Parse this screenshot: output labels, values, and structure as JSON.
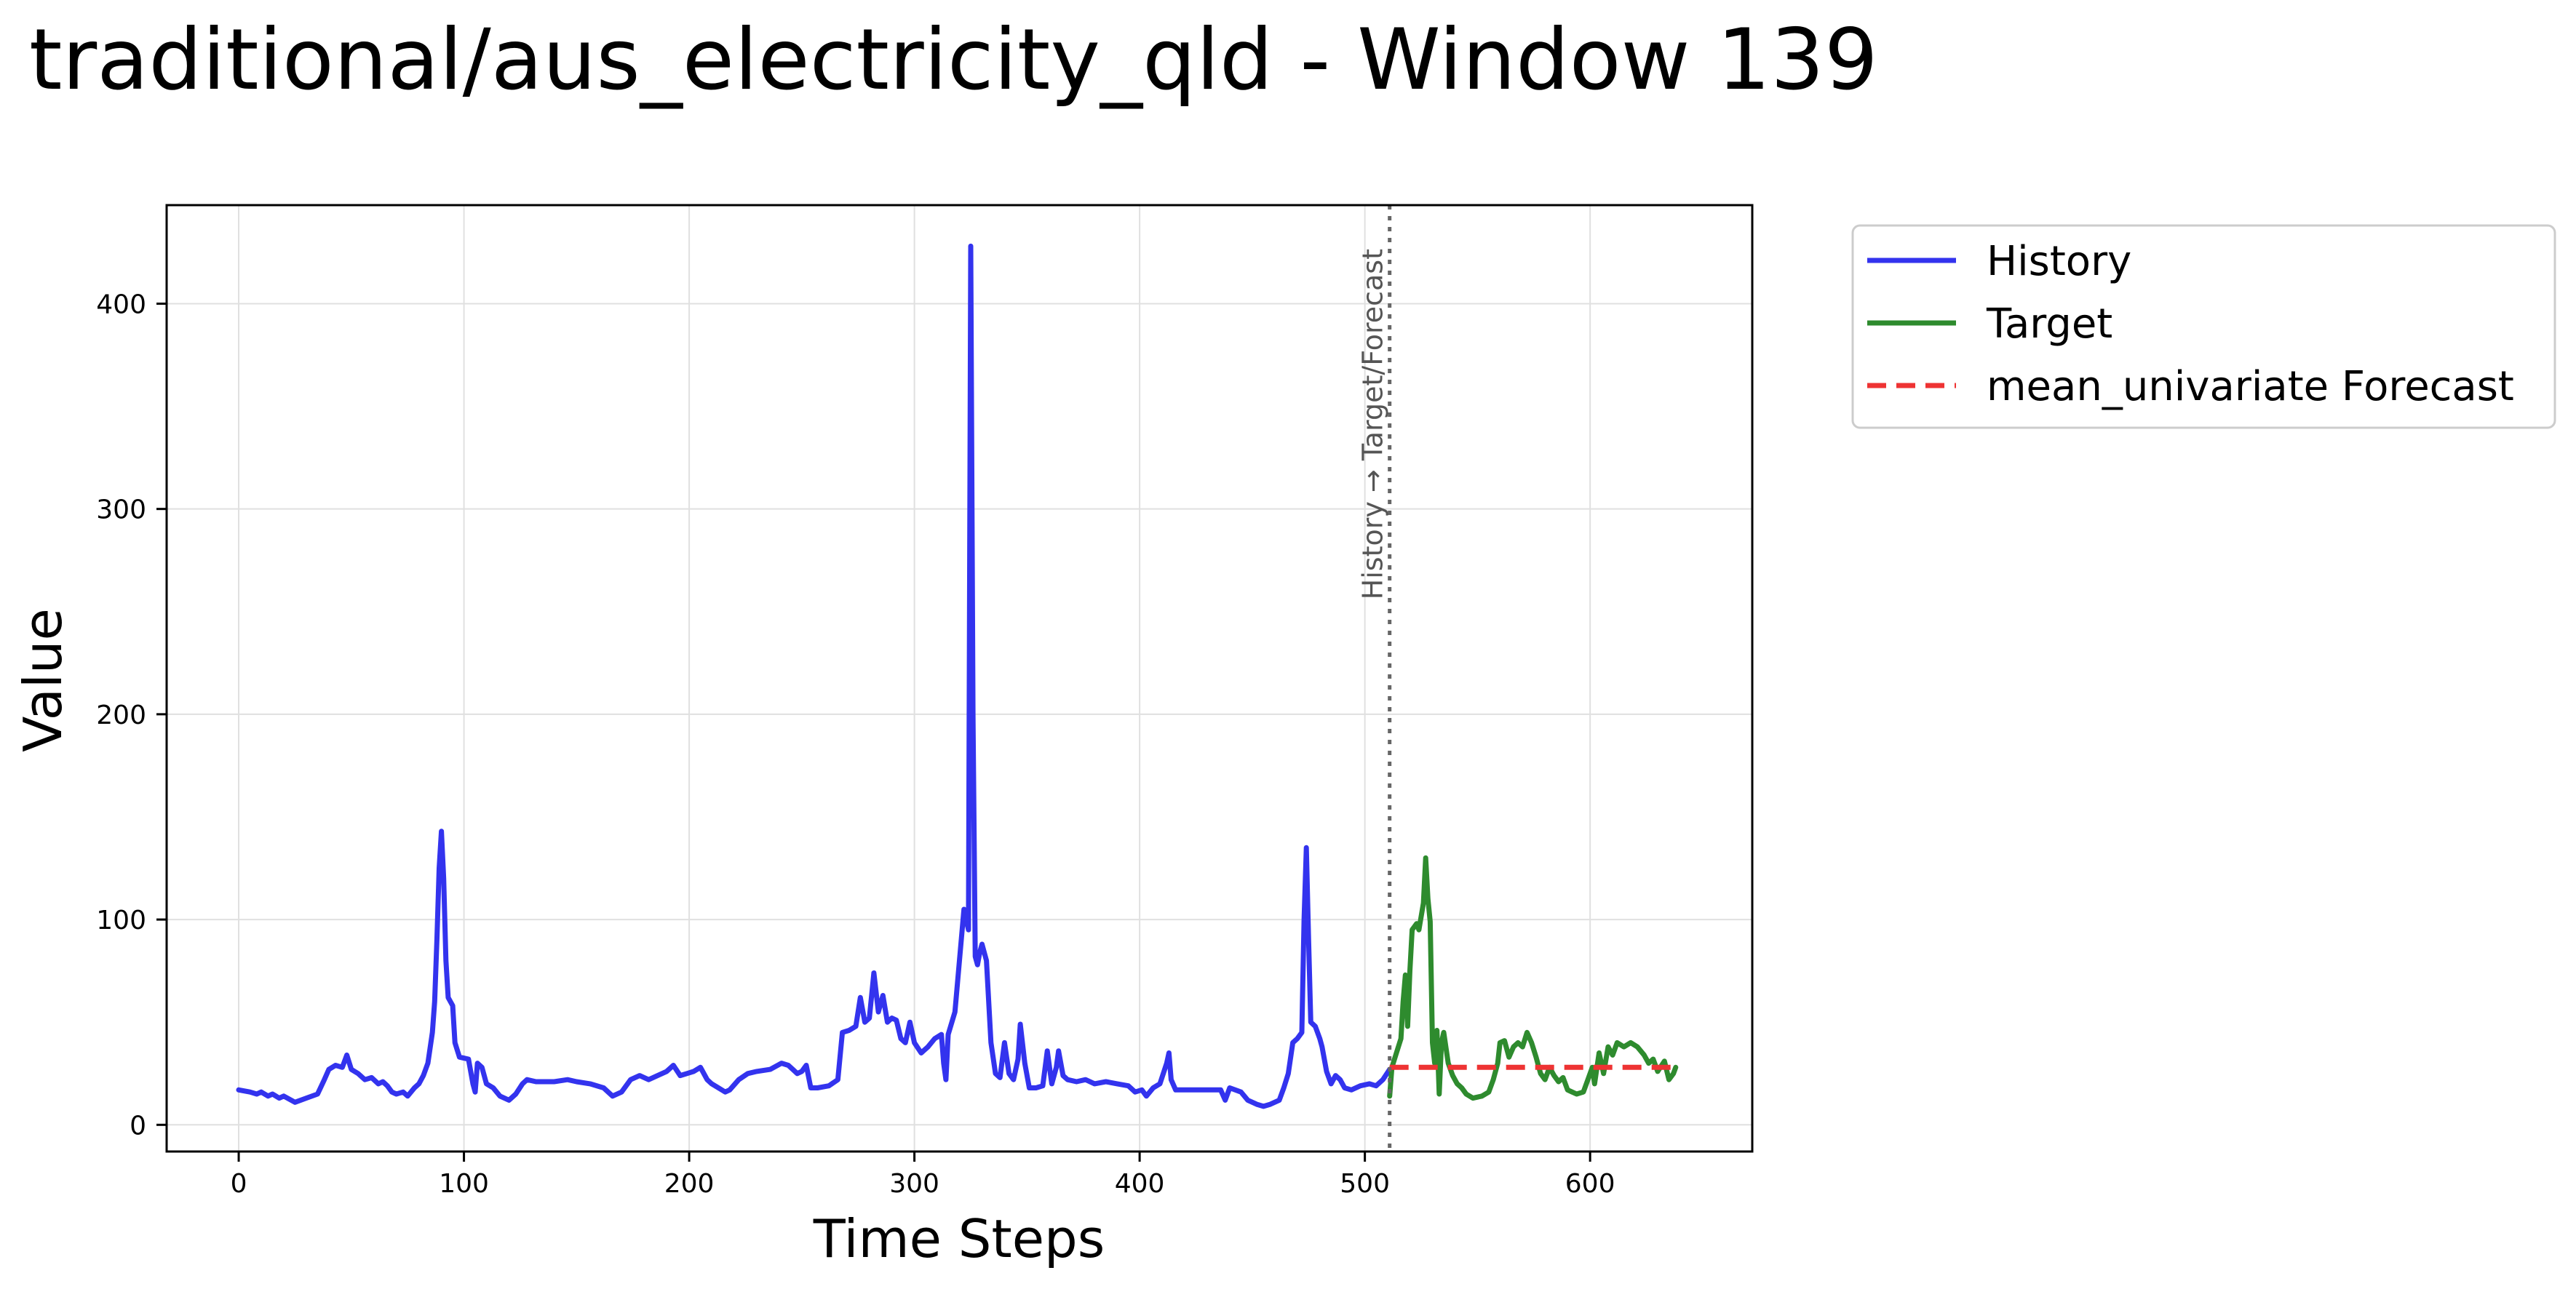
{
  "figure": {
    "title": "traditional/aus_electricity_qld - Window 139"
  },
  "chart_data": {
    "type": "line",
    "title": "traditional/aus_electricity_qld - Window 139",
    "xlabel": "Time Steps",
    "ylabel": "Value",
    "xlim": [
      -32,
      672
    ],
    "ylim": [
      -13,
      448
    ],
    "xticks": [
      0,
      100,
      200,
      300,
      400,
      500,
      600
    ],
    "yticks": [
      0,
      100,
      200,
      300,
      400
    ],
    "grid": true,
    "legend_position": "outside-top-right",
    "split_x": 511,
    "split_annotation": "History → Target/Forecast",
    "series": [
      {
        "name": "History",
        "color": "#3333ee",
        "style": "solid",
        "points": [
          [
            0,
            17
          ],
          [
            5,
            16
          ],
          [
            8,
            15
          ],
          [
            10,
            16
          ],
          [
            13,
            14
          ],
          [
            15,
            15
          ],
          [
            18,
            13
          ],
          [
            20,
            14
          ],
          [
            25,
            11
          ],
          [
            30,
            13
          ],
          [
            35,
            15
          ],
          [
            38,
            22
          ],
          [
            40,
            27
          ],
          [
            43,
            29
          ],
          [
            46,
            28
          ],
          [
            48,
            34
          ],
          [
            50,
            27
          ],
          [
            53,
            25
          ],
          [
            56,
            22
          ],
          [
            59,
            23
          ],
          [
            62,
            20
          ],
          [
            64,
            21
          ],
          [
            66,
            19
          ],
          [
            68,
            16
          ],
          [
            70,
            15
          ],
          [
            73,
            16
          ],
          [
            75,
            14
          ],
          [
            78,
            18
          ],
          [
            80,
            20
          ],
          [
            82,
            24
          ],
          [
            84,
            30
          ],
          [
            86,
            45
          ],
          [
            87,
            60
          ],
          [
            88,
            90
          ],
          [
            89,
            125
          ],
          [
            90,
            143
          ],
          [
            91,
            120
          ],
          [
            92,
            80
          ],
          [
            93,
            62
          ],
          [
            95,
            58
          ],
          [
            96,
            40
          ],
          [
            98,
            33
          ],
          [
            102,
            32
          ],
          [
            104,
            20
          ],
          [
            105,
            16
          ],
          [
            106,
            30
          ],
          [
            108,
            28
          ],
          [
            110,
            20
          ],
          [
            113,
            18
          ],
          [
            116,
            14
          ],
          [
            120,
            12
          ],
          [
            123,
            15
          ],
          [
            126,
            20
          ],
          [
            128,
            22
          ],
          [
            132,
            21
          ],
          [
            140,
            21
          ],
          [
            146,
            22
          ],
          [
            150,
            21
          ],
          [
            156,
            20
          ],
          [
            162,
            18
          ],
          [
            166,
            14
          ],
          [
            170,
            16
          ],
          [
            174,
            22
          ],
          [
            178,
            24
          ],
          [
            182,
            22
          ],
          [
            186,
            24
          ],
          [
            190,
            26
          ],
          [
            193,
            29
          ],
          [
            196,
            24
          ],
          [
            199,
            25
          ],
          [
            202,
            26
          ],
          [
            205,
            28
          ],
          [
            208,
            22
          ],
          [
            210,
            20
          ],
          [
            213,
            18
          ],
          [
            216,
            16
          ],
          [
            218,
            17
          ],
          [
            222,
            22
          ],
          [
            226,
            25
          ],
          [
            230,
            26
          ],
          [
            236,
            27
          ],
          [
            241,
            30
          ],
          [
            244,
            29
          ],
          [
            246,
            27
          ],
          [
            248,
            25
          ],
          [
            250,
            26
          ],
          [
            252,
            29
          ],
          [
            254,
            18
          ],
          [
            257,
            18
          ],
          [
            262,
            19
          ],
          [
            266,
            22
          ],
          [
            268,
            45
          ],
          [
            271,
            46
          ],
          [
            274,
            48
          ],
          [
            276,
            62
          ],
          [
            278,
            50
          ],
          [
            280,
            52
          ],
          [
            282,
            74
          ],
          [
            284,
            55
          ],
          [
            286,
            63
          ],
          [
            288,
            50
          ],
          [
            290,
            52
          ],
          [
            292,
            51
          ],
          [
            294,
            42
          ],
          [
            296,
            40
          ],
          [
            298,
            50
          ],
          [
            300,
            40
          ],
          [
            303,
            35
          ],
          [
            306,
            38
          ],
          [
            309,
            42
          ],
          [
            312,
            44
          ],
          [
            313,
            30
          ],
          [
            314,
            22
          ],
          [
            315,
            44
          ],
          [
            318,
            55
          ],
          [
            320,
            80
          ],
          [
            322,
            105
          ],
          [
            324,
            95
          ],
          [
            325,
            428
          ],
          [
            326,
            200
          ],
          [
            327,
            82
          ],
          [
            328,
            78
          ],
          [
            329,
            84
          ],
          [
            330,
            88
          ],
          [
            332,
            80
          ],
          [
            334,
            40
          ],
          [
            336,
            25
          ],
          [
            338,
            23
          ],
          [
            340,
            40
          ],
          [
            342,
            25
          ],
          [
            344,
            22
          ],
          [
            346,
            32
          ],
          [
            347,
            49
          ],
          [
            349,
            30
          ],
          [
            351,
            18
          ],
          [
            354,
            18
          ],
          [
            357,
            19
          ],
          [
            359,
            36
          ],
          [
            361,
            20
          ],
          [
            363,
            28
          ],
          [
            364,
            36
          ],
          [
            366,
            24
          ],
          [
            368,
            22
          ],
          [
            372,
            21
          ],
          [
            376,
            22
          ],
          [
            380,
            20
          ],
          [
            385,
            21
          ],
          [
            390,
            20
          ],
          [
            395,
            19
          ],
          [
            398,
            16
          ],
          [
            401,
            17
          ],
          [
            403,
            14
          ],
          [
            406,
            18
          ],
          [
            409,
            20
          ],
          [
            412,
            30
          ],
          [
            413,
            35
          ],
          [
            414,
            22
          ],
          [
            416,
            17
          ],
          [
            420,
            17
          ],
          [
            426,
            17
          ],
          [
            432,
            17
          ],
          [
            436,
            17
          ],
          [
            438,
            12
          ],
          [
            440,
            18
          ],
          [
            445,
            16
          ],
          [
            448,
            12
          ],
          [
            452,
            10
          ],
          [
            455,
            9
          ],
          [
            458,
            10
          ],
          [
            462,
            12
          ],
          [
            464,
            18
          ],
          [
            466,
            25
          ],
          [
            468,
            40
          ],
          [
            470,
            42
          ],
          [
            472,
            45
          ],
          [
            473,
            100
          ],
          [
            474,
            135
          ],
          [
            475,
            90
          ],
          [
            476,
            50
          ],
          [
            478,
            48
          ],
          [
            480,
            42
          ],
          [
            481,
            38
          ],
          [
            483,
            26
          ],
          [
            485,
            20
          ],
          [
            487,
            24
          ],
          [
            489,
            22
          ],
          [
            491,
            18
          ],
          [
            494,
            17
          ],
          [
            498,
            19
          ],
          [
            502,
            20
          ],
          [
            505,
            19
          ],
          [
            508,
            22
          ],
          [
            511,
            27
          ]
        ]
      },
      {
        "name": "Target",
        "color": "#2e8b2e",
        "style": "solid",
        "points": [
          [
            511,
            14
          ],
          [
            512,
            28
          ],
          [
            514,
            35
          ],
          [
            516,
            42
          ],
          [
            517,
            60
          ],
          [
            518,
            73
          ],
          [
            519,
            48
          ],
          [
            520,
            75
          ],
          [
            521,
            95
          ],
          [
            523,
            98
          ],
          [
            524,
            95
          ],
          [
            526,
            108
          ],
          [
            527,
            130
          ],
          [
            528,
            110
          ],
          [
            529,
            99
          ],
          [
            530,
            40
          ],
          [
            531,
            30
          ],
          [
            532,
            46
          ],
          [
            533,
            15
          ],
          [
            534,
            40
          ],
          [
            535,
            45
          ],
          [
            537,
            30
          ],
          [
            539,
            24
          ],
          [
            541,
            20
          ],
          [
            543,
            18
          ],
          [
            545,
            15
          ],
          [
            548,
            13
          ],
          [
            552,
            14
          ],
          [
            555,
            16
          ],
          [
            557,
            22
          ],
          [
            559,
            30
          ],
          [
            560,
            40
          ],
          [
            562,
            41
          ],
          [
            564,
            33
          ],
          [
            566,
            38
          ],
          [
            568,
            40
          ],
          [
            570,
            38
          ],
          [
            572,
            45
          ],
          [
            574,
            40
          ],
          [
            576,
            33
          ],
          [
            578,
            25
          ],
          [
            580,
            22
          ],
          [
            582,
            28
          ],
          [
            584,
            24
          ],
          [
            586,
            21
          ],
          [
            588,
            23
          ],
          [
            590,
            17
          ],
          [
            594,
            15
          ],
          [
            597,
            16
          ],
          [
            599,
            22
          ],
          [
            601,
            28
          ],
          [
            602,
            20
          ],
          [
            604,
            35
          ],
          [
            606,
            25
          ],
          [
            608,
            38
          ],
          [
            610,
            34
          ],
          [
            612,
            40
          ],
          [
            615,
            38
          ],
          [
            618,
            40
          ],
          [
            621,
            38
          ],
          [
            624,
            34
          ],
          [
            626,
            30
          ],
          [
            628,
            32
          ],
          [
            630,
            26
          ],
          [
            633,
            31
          ],
          [
            635,
            22
          ],
          [
            637,
            25
          ],
          [
            638,
            28
          ]
        ]
      },
      {
        "name": "mean_univariate Forecast",
        "color": "#ee3333",
        "style": "dashed",
        "points": [
          [
            511,
            28
          ],
          [
            638,
            28
          ]
        ]
      }
    ]
  }
}
